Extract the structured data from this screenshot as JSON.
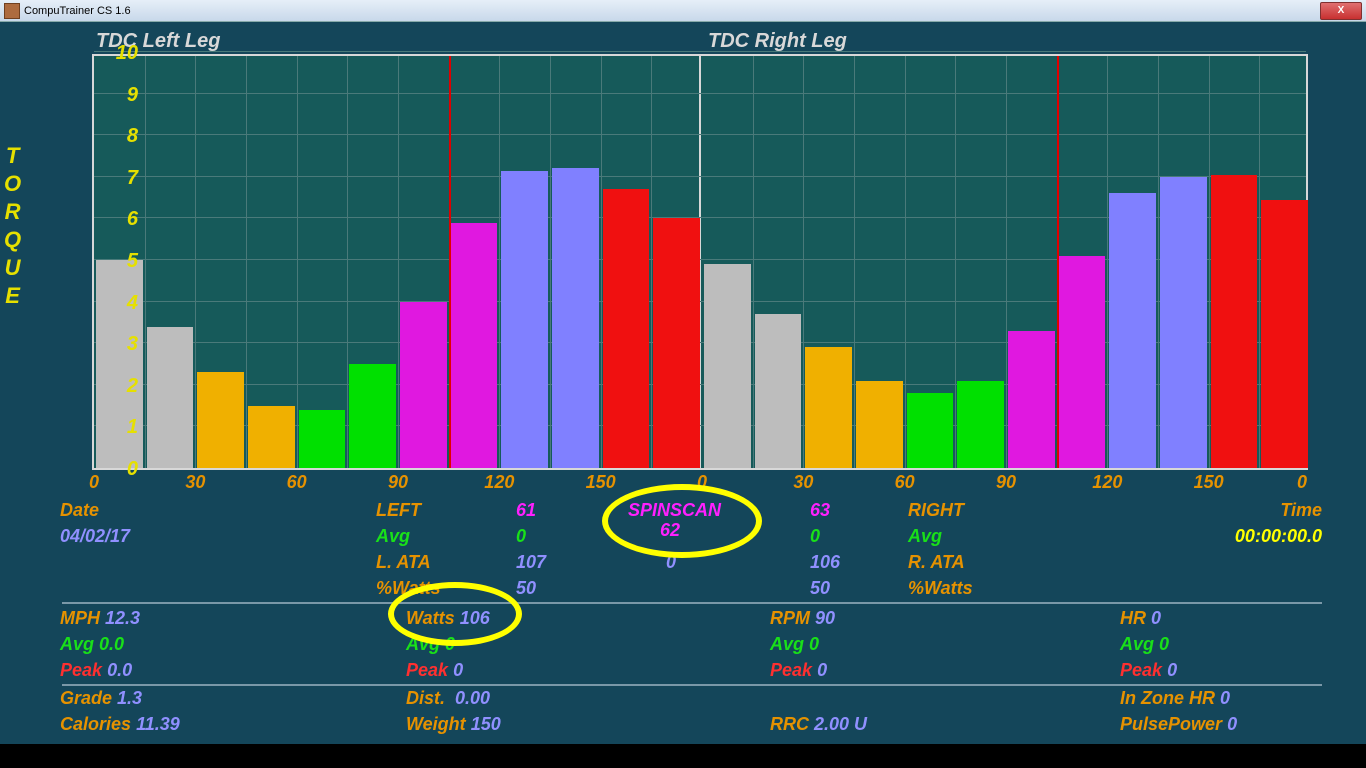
{
  "title": "CompuTrainer CS 1.6",
  "chart": {
    "title_left": "TDC Left Leg",
    "title_right": "TDC Right Leg",
    "yaxis_label": "TORQUE",
    "ymax": 10,
    "yticks": [
      0,
      1,
      2,
      3,
      4,
      5,
      6,
      7,
      8,
      9,
      10
    ],
    "xticks_left": [
      "0",
      "30",
      "60",
      "90",
      "120",
      "150"
    ],
    "xticks_right": [
      "0",
      "30",
      "60",
      "90",
      "120",
      "150",
      "0"
    ],
    "marker_left_deg": 105,
    "marker_right_deg": 105,
    "colors": {
      "gray": "#bdbdbd",
      "gold": "#f0b000",
      "green": "#00e000",
      "magenta": "#e018e0",
      "periwinkle": "#8080ff",
      "red": "#f01010"
    },
    "left": [
      {
        "v": 5.0,
        "c": "gray"
      },
      {
        "v": 3.4,
        "c": "gray"
      },
      {
        "v": 2.3,
        "c": "gold"
      },
      {
        "v": 1.5,
        "c": "gold"
      },
      {
        "v": 1.4,
        "c": "green"
      },
      {
        "v": 2.5,
        "c": "green"
      },
      {
        "v": 4.0,
        "c": "magenta"
      },
      {
        "v": 5.9,
        "c": "magenta"
      },
      {
        "v": 7.15,
        "c": "periwinkle"
      },
      {
        "v": 7.2,
        "c": "periwinkle"
      },
      {
        "v": 6.7,
        "c": "red"
      },
      {
        "v": 6.0,
        "c": "red"
      }
    ],
    "right": [
      {
        "v": 4.9,
        "c": "gray"
      },
      {
        "v": 3.7,
        "c": "gray"
      },
      {
        "v": 2.9,
        "c": "gold"
      },
      {
        "v": 2.1,
        "c": "gold"
      },
      {
        "v": 1.8,
        "c": "green"
      },
      {
        "v": 2.1,
        "c": "green"
      },
      {
        "v": 3.3,
        "c": "magenta"
      },
      {
        "v": 5.1,
        "c": "magenta"
      },
      {
        "v": 6.6,
        "c": "periwinkle"
      },
      {
        "v": 7.0,
        "c": "periwinkle"
      },
      {
        "v": 7.05,
        "c": "red"
      },
      {
        "v": 6.45,
        "c": "red"
      }
    ]
  },
  "stats": {
    "date_label": "Date",
    "date": "04/02/17",
    "time_label": "Time",
    "time": "00:00:00.0",
    "left_label": "LEFT",
    "left_ss": "61",
    "right_label": "RIGHT",
    "right_ss": "63",
    "spinscan_label": "SPINSCAN",
    "spinscan": "62",
    "avg_label": "Avg",
    "left_avg": "0",
    "right_avg": "0",
    "lata_label": "L. ATA",
    "lata": "107",
    "rata_label": "R. ATA",
    "rata": "106",
    "ata_center": "0",
    "pctwatts_label": "%Watts",
    "pctwatts_left": "50",
    "pctwatts_right": "50",
    "mph_label": "MPH",
    "mph": "12.3",
    "watts_label": "Watts",
    "watts": "106",
    "rpm_label": "RPM",
    "rpm": "90",
    "hr_label": "HR",
    "hr": "0",
    "avg2_label": "Avg",
    "mph_avg": "0.0",
    "watts_avg": "0",
    "rpm_avg": "0",
    "hr_avg": "0",
    "peak_label": "Peak",
    "mph_peak": "0.0",
    "watts_peak": "0",
    "rpm_peak": "0",
    "hr_peak": "0",
    "grade_label": "Grade",
    "grade": "1.3",
    "dist_label": "Dist.",
    "dist": "0.00",
    "inzone_label": "In Zone HR",
    "inzone": "0",
    "cal_label": "Calories",
    "cal": "11.39",
    "weight_label": "Weight",
    "weight": "150",
    "rrc_label": "RRC",
    "rrc": "2.00 U",
    "pulse_label": "PulsePower",
    "pulse": "0"
  }
}
